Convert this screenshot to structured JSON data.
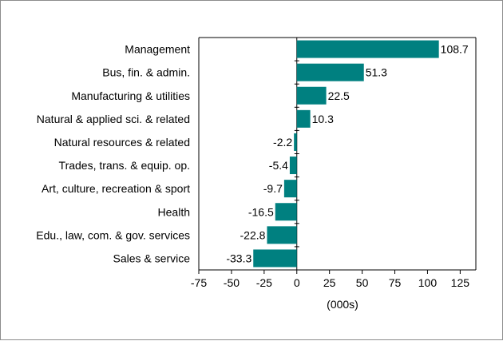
{
  "chart_data": {
    "type": "bar",
    "orientation": "horizontal",
    "title": "",
    "xlabel": "(000s)",
    "ylabel": "",
    "xlim": [
      -75,
      137
    ],
    "xticks": [
      -75,
      -50,
      -25,
      0,
      25,
      50,
      75,
      100,
      125
    ],
    "xtick_labels": [
      "-75",
      "-50",
      "-25",
      "0",
      "25",
      "50",
      "75",
      "100",
      "125"
    ],
    "grid": false,
    "legend": "none",
    "bar_color": "#008080",
    "categories": [
      "Management",
      "Bus, fin. & admin.",
      "Manufacturing & utilities",
      "Natural & applied sci. & related",
      "Natural resources & related",
      "Trades, trans. & equip. op.",
      "Art, culture, recreation & sport",
      "Health",
      "Edu., law, com. & gov. services",
      "Sales & service"
    ],
    "values": [
      108.7,
      51.3,
      22.5,
      10.3,
      -2.2,
      -5.4,
      -9.7,
      -16.5,
      -22.8,
      -33.3
    ],
    "value_labels": [
      "108.7",
      "51.3",
      "22.5",
      "10.3",
      "-2.2",
      "-5.4",
      "-9.7",
      "-16.5",
      "-22.8",
      "-33.3"
    ]
  }
}
